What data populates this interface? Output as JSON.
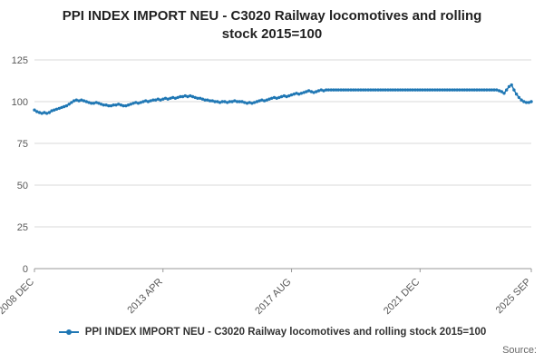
{
  "title": "PPI INDEX IMPORT NEU - C3020 Railway locomotives and rolling stock 2015=100",
  "legend": {
    "label": "PPI INDEX IMPORT NEU - C3020 Railway locomotives and rolling stock 2015=100"
  },
  "source": {
    "label": "Source:"
  },
  "colors": {
    "line": "#1f77b4",
    "grid": "#d9d9d9",
    "axis": "#999999",
    "tick_text": "#595959",
    "title_text": "#222222"
  },
  "chart_data": {
    "type": "line",
    "title": "PPI INDEX IMPORT NEU - C3020 Railway locomotives and rolling stock 2015=100",
    "xlabel": "",
    "ylabel": "",
    "ylim": [
      0,
      125
    ],
    "yticks": [
      0,
      25,
      50,
      75,
      100,
      125
    ],
    "grid": "horizontal",
    "legend_position": "bottom",
    "xticks": [
      {
        "label": "2008 DEC",
        "index": 0
      },
      {
        "label": "2013 APR",
        "index": 52
      },
      {
        "label": "2017 AUG",
        "index": 104
      },
      {
        "label": "2021 DEC",
        "index": 156
      },
      {
        "label": "2025 SEP",
        "index": 201
      }
    ],
    "values": [
      95.0,
      94.0,
      93.5,
      93.0,
      93.5,
      93.0,
      93.5,
      94.5,
      95.0,
      95.5,
      96.0,
      96.5,
      97.0,
      97.5,
      98.5,
      99.5,
      100.5,
      101.0,
      100.5,
      101.0,
      100.5,
      100.0,
      99.5,
      99.0,
      99.0,
      99.5,
      99.0,
      98.5,
      98.0,
      98.0,
      97.5,
      97.5,
      98.0,
      98.0,
      98.5,
      98.0,
      97.5,
      97.5,
      98.0,
      98.5,
      99.0,
      99.5,
      99.0,
      99.5,
      100.0,
      100.5,
      100.0,
      100.5,
      101.0,
      101.0,
      101.5,
      101.0,
      101.5,
      102.0,
      101.5,
      102.0,
      102.5,
      102.0,
      102.5,
      103.0,
      103.0,
      103.5,
      103.0,
      103.5,
      103.0,
      102.5,
      102.0,
      102.0,
      101.5,
      101.0,
      101.0,
      100.5,
      100.5,
      100.0,
      100.0,
      99.5,
      100.0,
      100.0,
      99.5,
      100.0,
      100.0,
      100.5,
      100.0,
      100.0,
      100.0,
      99.5,
      99.0,
      99.5,
      99.0,
      99.5,
      100.0,
      100.5,
      101.0,
      100.5,
      101.0,
      101.5,
      102.0,
      102.5,
      102.0,
      102.5,
      103.0,
      103.5,
      103.0,
      103.5,
      104.0,
      104.5,
      105.0,
      104.5,
      105.0,
      105.5,
      106.0,
      106.5,
      106.0,
      105.5,
      106.0,
      106.5,
      107.0,
      106.5,
      107.0,
      107.0,
      107.0,
      107.0,
      107.0,
      107.0,
      107.0,
      107.0,
      107.0,
      107.0,
      107.0,
      107.0,
      107.0,
      107.0,
      107.0,
      107.0,
      107.0,
      107.0,
      107.0,
      107.0,
      107.0,
      107.0,
      107.0,
      107.0,
      107.0,
      107.0,
      107.0,
      107.0,
      107.0,
      107.0,
      107.0,
      107.0,
      107.0,
      107.0,
      107.0,
      107.0,
      107.0,
      107.0,
      107.0,
      107.0,
      107.0,
      107.0,
      107.0,
      107.0,
      107.0,
      107.0,
      107.0,
      107.0,
      107.0,
      107.0,
      107.0,
      107.0,
      107.0,
      107.0,
      107.0,
      107.0,
      107.0,
      107.0,
      107.0,
      107.0,
      107.0,
      107.0,
      107.0,
      107.0,
      107.0,
      107.0,
      107.0,
      107.0,
      107.0,
      107.0,
      106.5,
      106.0,
      105.0,
      107.0,
      109.0,
      110.0,
      107.0,
      104.5,
      102.5,
      101.0,
      100.0,
      99.5,
      99.5,
      100.0
    ]
  }
}
